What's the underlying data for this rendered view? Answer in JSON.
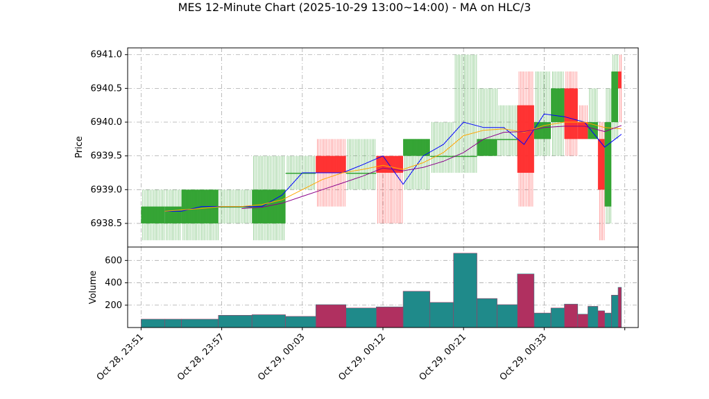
{
  "chart_data": {
    "type": "candlestick",
    "title": "MES 12-Minute Chart (2025-10-29 13:00~14:00) - MA on HLC/3",
    "price_panel": {
      "ylabel": "Price",
      "ylim": [
        6938.15,
        6941.1
      ],
      "yticks": [
        "6938.5",
        "6939.0",
        "6939.5",
        "6940.0",
        "6940.5",
        "6941.0"
      ],
      "ytick_values": [
        6938.5,
        6939.0,
        6939.5,
        6940.0,
        6940.5,
        6941.0
      ],
      "grid": true
    },
    "volume_panel": {
      "ylabel": "Volume",
      "ylim": [
        0,
        720
      ],
      "yticks": [
        "200",
        "400",
        "600"
      ],
      "ytick_values": [
        200,
        400,
        600
      ],
      "grid": true
    },
    "xlim": [
      -4,
      148
    ],
    "xticks": [
      {
        "pos": 0,
        "label": "Oct 28, 23:51"
      },
      {
        "pos": 24,
        "label": "Oct 28, 23:57"
      },
      {
        "pos": 48,
        "label": "Oct 29, 00:03"
      },
      {
        "pos": 72,
        "label": "Oct 29, 00:12"
      },
      {
        "pos": 96,
        "label": "Oct 29, 00:21"
      },
      {
        "pos": 120,
        "label": "Oct 29, 00:33"
      },
      {
        "pos": 144,
        "label": ""
      }
    ],
    "colors": {
      "up": "#2ca02c",
      "down": "#ff2a2a",
      "vol_up": "#1f8a8a",
      "vol_down": "#b03060",
      "ma_fast": "#0000ff",
      "ma_mid": "#ffa500",
      "ma_slow": "#8b008b",
      "grid": "#aaaaaa"
    },
    "blocks": [
      {
        "start": 0,
        "end": 7,
        "open": 6938.5,
        "high": 6939.0,
        "low": 6938.25,
        "close": 6938.75,
        "volume": 75
      },
      {
        "start": 7,
        "end": 12,
        "open": 6938.5,
        "high": 6939.0,
        "low": 6938.25,
        "close": 6938.75,
        "volume": 75
      },
      {
        "start": 12,
        "end": 23,
        "open": 6938.5,
        "high": 6939.0,
        "low": 6938.25,
        "close": 6939.0,
        "volume": 75
      },
      {
        "start": 23,
        "end": 33,
        "open": 6938.75,
        "high": 6939.0,
        "low": 6938.5,
        "close": 6938.75,
        "volume": 110
      },
      {
        "start": 33,
        "end": 43,
        "open": 6938.5,
        "high": 6939.5,
        "low": 6938.25,
        "close": 6939.0,
        "volume": 115
      },
      {
        "start": 43,
        "end": 52,
        "open": 6939.25,
        "high": 6939.5,
        "low": 6939.0,
        "close": 6939.25,
        "volume": 100
      },
      {
        "start": 52,
        "end": 61,
        "open": 6939.5,
        "high": 6939.75,
        "low": 6938.75,
        "close": 6939.25,
        "volume": 205
      },
      {
        "start": 61,
        "end": 70,
        "open": 6939.25,
        "high": 6939.75,
        "low": 6939.0,
        "close": 6939.25,
        "volume": 175
      },
      {
        "start": 70,
        "end": 78,
        "open": 6939.5,
        "high": 6939.5,
        "low": 6938.5,
        "close": 6939.25,
        "volume": 185
      },
      {
        "start": 78,
        "end": 86,
        "open": 6939.5,
        "high": 6939.75,
        "low": 6939.0,
        "close": 6939.75,
        "volume": 325
      },
      {
        "start": 86,
        "end": 93,
        "open": 6939.5,
        "high": 6940.0,
        "low": 6939.25,
        "close": 6939.5,
        "volume": 225
      },
      {
        "start": 93,
        "end": 100,
        "open": 6939.5,
        "high": 6941.0,
        "low": 6939.25,
        "close": 6939.5,
        "volume": 665
      },
      {
        "start": 100,
        "end": 106,
        "open": 6939.5,
        "high": 6940.5,
        "low": 6939.5,
        "close": 6939.75,
        "volume": 260
      },
      {
        "start": 106,
        "end": 112,
        "open": 6939.75,
        "high": 6940.25,
        "low": 6939.5,
        "close": 6939.75,
        "volume": 205
      },
      {
        "start": 112,
        "end": 117,
        "open": 6940.25,
        "high": 6940.75,
        "low": 6938.75,
        "close": 6939.25,
        "volume": 480
      },
      {
        "start": 117,
        "end": 122,
        "open": 6939.75,
        "high": 6940.75,
        "low": 6939.5,
        "close": 6940.0,
        "volume": 130
      },
      {
        "start": 122,
        "end": 126,
        "open": 6940.0,
        "high": 6940.75,
        "low": 6939.5,
        "close": 6940.5,
        "volume": 175
      },
      {
        "start": 126,
        "end": 130,
        "open": 6940.5,
        "high": 6940.75,
        "low": 6939.5,
        "close": 6939.75,
        "volume": 210
      },
      {
        "start": 130,
        "end": 133,
        "open": 6940.0,
        "high": 6940.25,
        "low": 6939.75,
        "close": 6939.75,
        "volume": 120
      },
      {
        "start": 133,
        "end": 136,
        "open": 6939.75,
        "high": 6940.5,
        "low": 6939.75,
        "close": 6940.0,
        "volume": 190
      },
      {
        "start": 136,
        "end": 138,
        "open": 6939.75,
        "high": 6940.0,
        "low": 6938.25,
        "close": 6939.0,
        "volume": 150
      },
      {
        "start": 138,
        "end": 140,
        "open": 6938.75,
        "high": 6940.5,
        "low": 6938.5,
        "close": 6940.0,
        "volume": 130
      },
      {
        "start": 140,
        "end": 142,
        "open": 6940.0,
        "high": 6941.0,
        "low": 6939.75,
        "close": 6940.75,
        "volume": 290
      },
      {
        "start": 142,
        "end": 143,
        "open": 6940.75,
        "high": 6941.0,
        "low": 6940.0,
        "close": 6940.5,
        "volume": 360
      }
    ],
    "ma_series": [
      {
        "key": "ma_fast",
        "x": [
          7,
          12,
          18,
          24,
          30,
          36,
          42,
          48,
          54,
          60,
          66,
          72,
          78,
          84,
          90,
          96,
          102,
          108,
          114,
          120,
          126,
          132,
          138,
          143
        ],
        "y": [
          6938.68,
          6938.68,
          6938.75,
          6938.75,
          6938.75,
          6938.75,
          6938.92,
          6939.25,
          6939.25,
          6939.25,
          6939.37,
          6939.5,
          6939.08,
          6939.5,
          6939.67,
          6940.0,
          6939.92,
          6939.92,
          6939.67,
          6940.12,
          6940.08,
          6940.0,
          6939.63,
          6939.82
        ]
      },
      {
        "key": "ma_mid",
        "x": [
          7,
          12,
          18,
          24,
          30,
          36,
          42,
          48,
          54,
          60,
          66,
          72,
          78,
          84,
          90,
          96,
          102,
          108,
          114,
          120,
          126,
          132,
          138,
          143
        ],
        "y": [
          6938.68,
          6938.7,
          6938.72,
          6938.75,
          6938.75,
          6938.78,
          6938.85,
          6939.0,
          6939.15,
          6939.25,
          6939.3,
          6939.36,
          6939.3,
          6939.4,
          6939.55,
          6939.8,
          6939.88,
          6939.9,
          6939.85,
          6939.95,
          6940.0,
          6940.0,
          6939.92,
          6939.9
        ]
      },
      {
        "key": "ma_slow",
        "x": [
          30,
          36,
          42,
          48,
          54,
          60,
          66,
          72,
          78,
          84,
          90,
          96,
          102,
          108,
          114,
          120,
          126,
          132,
          138,
          143
        ],
        "y": [
          6938.72,
          6938.74,
          6938.8,
          6938.9,
          6939.0,
          6939.1,
          6939.2,
          6939.32,
          6939.28,
          6939.33,
          6939.42,
          6939.55,
          6939.75,
          6939.85,
          6939.86,
          6939.92,
          6939.94,
          6939.94,
          6939.86,
          6939.95
        ]
      }
    ]
  }
}
